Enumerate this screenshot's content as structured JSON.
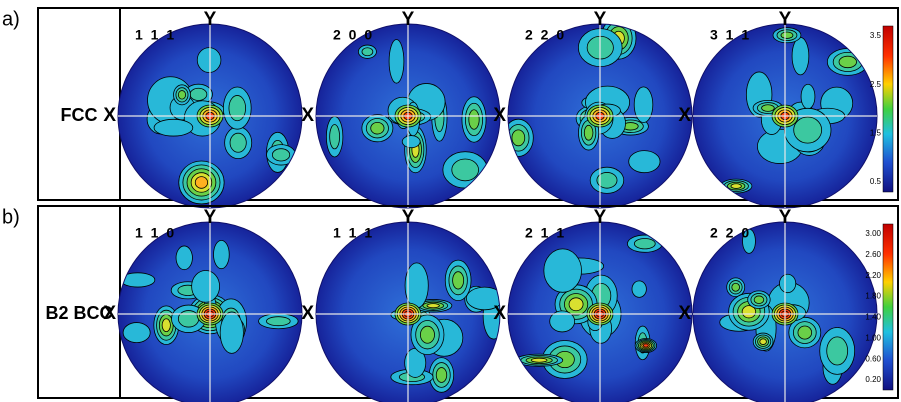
{
  "panels": [
    {
      "label": "a)",
      "row_label": "FCC",
      "poles": [
        {
          "label": "1 1 1",
          "x_axis": "X",
          "y_axis": "Y"
        },
        {
          "label": "2 0 0",
          "x_axis": "X",
          "y_axis": "Y"
        },
        {
          "label": "2 2 0",
          "x_axis": "X",
          "y_axis": "Y"
        },
        {
          "label": "3 1 1",
          "x_axis": "X",
          "y_axis": "Y"
        }
      ],
      "colorbar_ticks": [
        "3.5",
        "2.5",
        "1.5",
        "0.5"
      ]
    },
    {
      "label": "b)",
      "row_label": "B2 BCC",
      "poles": [
        {
          "label": "1 1 0",
          "x_axis": "X",
          "y_axis": "Y"
        },
        {
          "label": "1 1 1",
          "x_axis": "X",
          "y_axis": "Y"
        },
        {
          "label": "2 1 1",
          "x_axis": "X",
          "y_axis": "Y"
        },
        {
          "label": "2 2 0",
          "x_axis": "X",
          "y_axis": "Y"
        }
      ],
      "colorbar_ticks": [
        "3.00",
        "2.60",
        "2.20",
        "1.80",
        "1.40",
        "1.00",
        "0.60",
        "0.20"
      ]
    }
  ]
}
